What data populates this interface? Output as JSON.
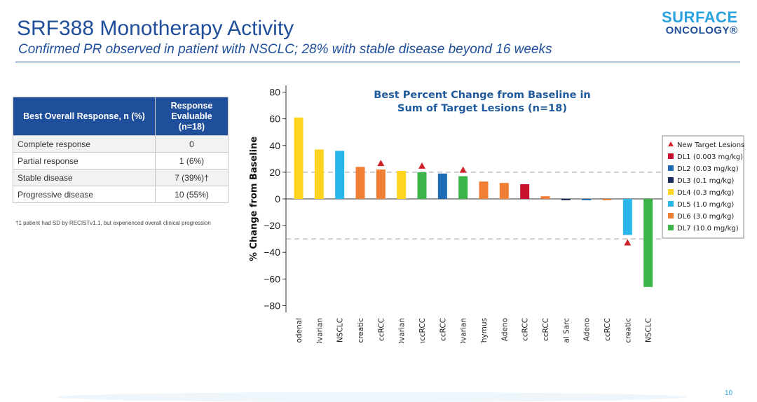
{
  "header": {
    "title": "SRF388 Monotherapy Activity",
    "subtitle": "Confirmed PR observed in patient with NSCLC; 28% with stable disease beyond 16 weeks"
  },
  "logo": {
    "line1": "SURFACE",
    "line2": "ONCOLOGY®"
  },
  "response_table": {
    "headers": [
      "Best Overall Response, n (%)",
      "Response Evaluable (n=18)"
    ],
    "rows": [
      [
        "Complete response",
        "0"
      ],
      [
        "Partial response",
        "1 (6%)"
      ],
      [
        "Stable disease",
        "7 (39%)†"
      ],
      [
        "Progressive disease",
        "10 (55%)"
      ]
    ]
  },
  "footnote": "†1 patient had SD by RECISTv1.1, but experienced overall clinical progression",
  "page_number": "10",
  "chart_data": {
    "type": "bar",
    "title": "Best Percent Change from Baseline in Sum of Target Lesions (n=18)",
    "title_lines": [
      "Best Percent Change from Baseline in",
      "Sum of Target Lesions (n=18)"
    ],
    "xlabel": "",
    "ylabel": "% Change from Baseline",
    "ylim": [
      -85,
      85
    ],
    "yticks": [
      80,
      60,
      40,
      20,
      0,
      -20,
      -40,
      -60,
      -80
    ],
    "reference_lines": [
      20,
      -30
    ],
    "grid": false,
    "legend_position": "right",
    "legend": [
      {
        "label": "New Target Lesions",
        "marker": "triangle",
        "color": "#d1232a"
      },
      {
        "label": "DL1 (0.003 mg/kg)",
        "color": "#c8102e"
      },
      {
        "label": "DL2 (0.03 mg/kg)",
        "color": "#1f6bb5"
      },
      {
        "label": "DL3 (0.1 mg/kg)",
        "color": "#1b2a5c"
      },
      {
        "label": "DL4 (0.3 mg/kg)",
        "color": "#ffd41f"
      },
      {
        "label": "DL5 (1.0 mg/kg)",
        "color": "#29b6ea"
      },
      {
        "label": "DL6 (3.0 mg/kg)",
        "color": "#f07e34"
      },
      {
        "label": "DL7 (10.0 mg/kg)",
        "color": "#3bb44a"
      }
    ],
    "categories": [
      "Duodenal",
      "Ovarian",
      "NSCLC",
      "Pancreatic",
      "ccRCC",
      "Ovarian",
      "nccRCC",
      "ccRCC",
      "Ovarian",
      "Thymus",
      "Cecal Adeno",
      "ccRCC",
      "ccRCC",
      "Synovial Sarc",
      "Append Adeno",
      "ccRCC",
      "Pancreatic",
      "Squam NSCLC"
    ],
    "values": [
      61,
      37,
      36,
      24,
      22,
      21,
      20,
      19,
      17,
      13,
      12,
      11,
      2,
      -1,
      -1,
      -1,
      -27,
      -66
    ],
    "dose_level": [
      "DL4",
      "DL4",
      "DL5",
      "DL6",
      "DL6",
      "DL4",
      "DL7",
      "DL2",
      "DL7",
      "DL6",
      "DL6",
      "DL1",
      "DL6",
      "DL3",
      "DL2",
      "DL6",
      "DL5",
      "DL7"
    ],
    "new_target_lesions": [
      false,
      false,
      false,
      false,
      true,
      false,
      true,
      false,
      true,
      false,
      false,
      false,
      false,
      false,
      false,
      false,
      true,
      false
    ]
  }
}
